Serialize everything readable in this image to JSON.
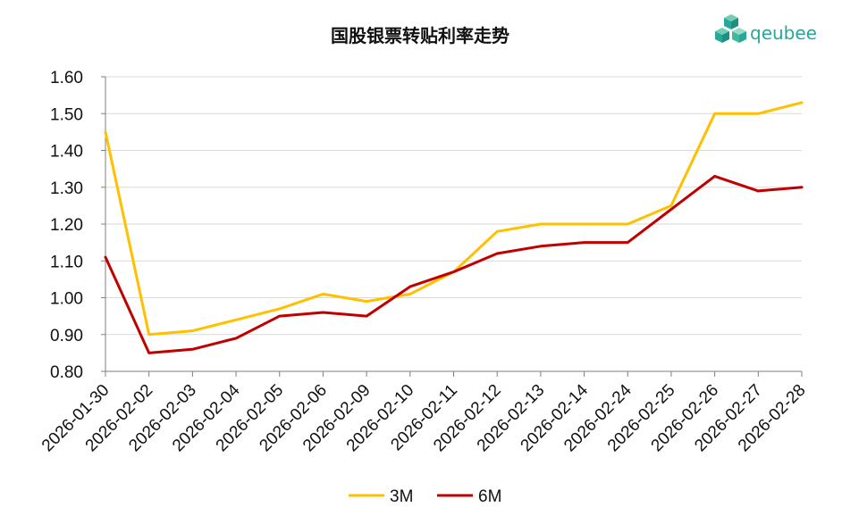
{
  "brand": {
    "name": "qeubee",
    "icon": "cube-cluster-icon",
    "color": "#27a89a"
  },
  "chart_data": {
    "type": "line",
    "title": "国股银票转贴利率走势",
    "xlabel": "",
    "ylabel": "",
    "categories": [
      "2026-01-30",
      "2026-02-02",
      "2026-02-03",
      "2026-02-04",
      "2026-02-05",
      "2026-02-06",
      "2026-02-09",
      "2026-02-10",
      "2026-02-11",
      "2026-02-12",
      "2026-02-13",
      "2026-02-14",
      "2026-02-24",
      "2026-02-25",
      "2026-02-26",
      "2026-02-27",
      "2026-02-28"
    ],
    "series": [
      {
        "name": "3M",
        "color": "#ffc000",
        "values": [
          1.45,
          0.9,
          0.91,
          0.94,
          0.97,
          1.01,
          0.99,
          1.01,
          1.07,
          1.18,
          1.2,
          1.2,
          1.2,
          1.25,
          1.5,
          1.5,
          1.53
        ]
      },
      {
        "name": "6M",
        "color": "#c00000",
        "values": [
          1.11,
          0.85,
          0.86,
          0.89,
          0.95,
          0.96,
          0.95,
          1.03,
          1.07,
          1.12,
          1.14,
          1.15,
          1.15,
          1.24,
          1.33,
          1.29,
          1.3
        ]
      }
    ],
    "ylim": [
      0.8,
      1.6
    ],
    "yticks": [
      "0.80",
      "0.90",
      "1.00",
      "1.10",
      "1.20",
      "1.30",
      "1.40",
      "1.50",
      "1.60"
    ],
    "grid": true,
    "legend": "bottom"
  }
}
